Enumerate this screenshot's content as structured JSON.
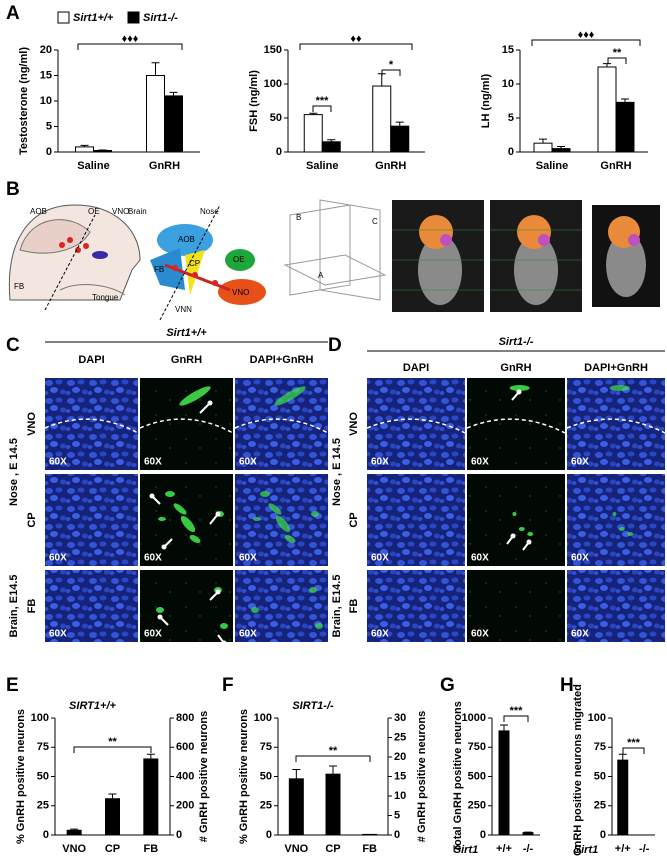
{
  "panel_labels": [
    "A",
    "B",
    "C",
    "D",
    "E",
    "F",
    "G",
    "H"
  ],
  "chart_data": [
    {
      "type": "bar",
      "ylabel": "Testosterone (ng/ml)",
      "categories": [
        "Saline",
        "GnRH"
      ],
      "series": [
        {
          "name": "Sirt1+/+",
          "color": "#ffffff",
          "values": [
            1,
            15
          ],
          "errors": [
            0.3,
            2.5
          ]
        },
        {
          "name": "Sirt1-/-",
          "color": "#000000",
          "values": [
            0.3,
            11
          ],
          "errors": [
            0.1,
            0.7
          ]
        }
      ],
      "ylim": [
        0,
        20
      ],
      "yticks": [
        0,
        5,
        10,
        15,
        20
      ],
      "annotations": [
        "♦♦♦"
      ]
    },
    {
      "type": "bar",
      "ylabel": "FSH (ng/ml)",
      "categories": [
        "Saline",
        "GnRH"
      ],
      "series": [
        {
          "name": "Sirt1+/+",
          "color": "#ffffff",
          "values": [
            55,
            97
          ],
          "errors": [
            2,
            18
          ]
        },
        {
          "name": "Sirt1-/-",
          "color": "#000000",
          "values": [
            15,
            38
          ],
          "errors": [
            3,
            6
          ]
        }
      ],
      "ylim": [
        0,
        150
      ],
      "yticks": [
        0,
        50,
        100,
        150
      ],
      "annotations": [
        "♦♦",
        "***",
        "*"
      ]
    },
    {
      "type": "bar",
      "ylabel": "LH (ng/ml)",
      "categories": [
        "Saline",
        "GnRH"
      ],
      "series": [
        {
          "name": "Sirt1+/+",
          "color": "#ffffff",
          "values": [
            1.3,
            12.5
          ],
          "errors": [
            0.6,
            0.5
          ]
        },
        {
          "name": "Sirt1-/-",
          "color": "#000000",
          "values": [
            0.5,
            7.3
          ],
          "errors": [
            0.3,
            0.5
          ]
        }
      ],
      "ylim": [
        0,
        15
      ],
      "yticks": [
        0,
        5,
        10,
        15
      ],
      "annotations": [
        "♦♦♦",
        "**"
      ]
    },
    {
      "type": "bar",
      "title": "SIRT1+/+",
      "ylabel": "% GnRH positive neurons",
      "y2label": "# GnRH positive neurons",
      "categories": [
        "VNO",
        "CP",
        "FB"
      ],
      "values": [
        4,
        31,
        65
      ],
      "errors": [
        1,
        4,
        4
      ],
      "color": "#000000",
      "ylim": [
        0,
        100
      ],
      "yticks": [
        0,
        25,
        50,
        75,
        100
      ],
      "y2lim": [
        0,
        800
      ],
      "y2ticks": [
        0,
        200,
        400,
        600,
        800
      ],
      "annotations": [
        "**"
      ]
    },
    {
      "type": "bar",
      "title": "SIRT1-/-",
      "ylabel": "% GnRH positive neurons",
      "y2label": "# GnRH positive neurons",
      "categories": [
        "VNO",
        "CP",
        "FB"
      ],
      "values": [
        48,
        52,
        0.5
      ],
      "errors": [
        8,
        7,
        0
      ],
      "color": "#000000",
      "ylim": [
        0,
        100
      ],
      "yticks": [
        0,
        25,
        50,
        75,
        100
      ],
      "y2lim": [
        0,
        30
      ],
      "y2ticks": [
        0,
        5,
        10,
        15,
        20,
        25,
        30
      ],
      "annotations": [
        "**"
      ]
    },
    {
      "type": "bar",
      "ylabel": "Total GnRH positive neurons",
      "xlabel": "Sirt1",
      "categories": [
        "+/+",
        "-/-"
      ],
      "values": [
        890,
        20
      ],
      "errors": [
        50,
        5
      ],
      "color": "#000000",
      "ylim": [
        0,
        1000
      ],
      "yticks": [
        0,
        250,
        500,
        750,
        1000
      ],
      "annotations": [
        "***"
      ]
    },
    {
      "type": "bar",
      "ylabel": "% GnRH positive neurons migrated",
      "xlabel": "Sirt1",
      "categories": [
        "+/+",
        "-/-"
      ],
      "values": [
        64,
        0
      ],
      "errors": [
        5,
        0
      ],
      "color": "#000000",
      "ylim": [
        0,
        100
      ],
      "yticks": [
        0,
        25,
        50,
        75,
        100
      ],
      "annotations": [
        "***"
      ]
    }
  ],
  "schematic": {
    "head_labels": [
      "AOB",
      "OE",
      "VNO",
      "FB",
      "Tongue"
    ],
    "diagram_labels": [
      "Brain",
      "Nose",
      "AOB",
      "FB",
      "CP",
      "OE",
      "VNN",
      "VNO"
    ],
    "axes_labels": [
      "B",
      "C",
      "A"
    ]
  },
  "micrographs": {
    "C": {
      "genotype": "Sirt1+/+",
      "columns": [
        "DAPI",
        "GnRH",
        "DAPI+GnRH"
      ],
      "rows": [
        "VNO",
        "CP",
        "FB"
      ],
      "groups": [
        "Nose , E 14.5",
        "Brain, E14.5"
      ],
      "magnification": "60X"
    },
    "D": {
      "genotype": "Sirt1-/-",
      "columns": [
        "DAPI",
        "GnRH",
        "DAPI+GnRH"
      ],
      "rows": [
        "VNO",
        "CP",
        "FB"
      ],
      "groups": [
        "Nose , E 14.5",
        "Brain, E14.5"
      ],
      "magnification": "60X"
    }
  }
}
